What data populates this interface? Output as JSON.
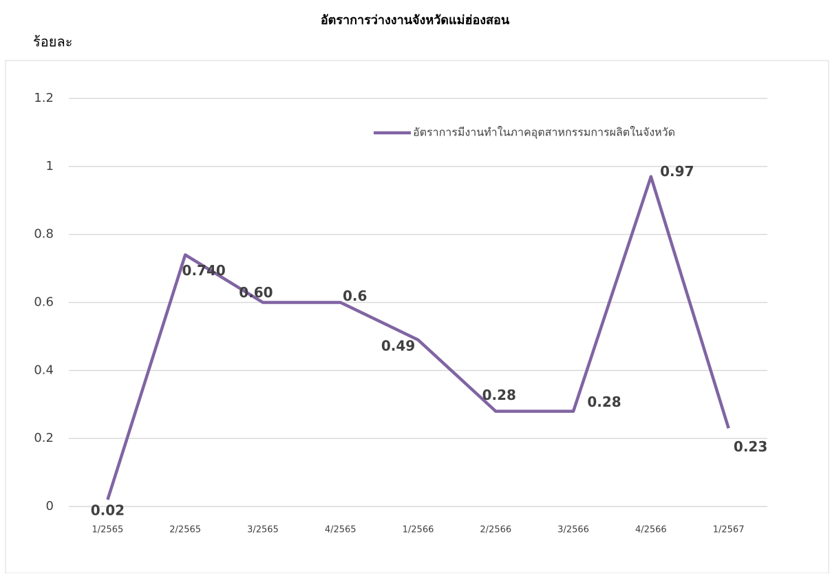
{
  "chart_data": {
    "type": "line",
    "title": "อัตราการว่างงานจังหวัดแม่ฮ่องสอน",
    "y_axis_label": "ร้อยละ",
    "categories": [
      "1/2565",
      "2/2565",
      "3/2565",
      "4/2565",
      "1/2566",
      "2/2566",
      "3/2566",
      "4/2566",
      "1/2567"
    ],
    "series": [
      {
        "name": "อัตราการมีงานทำในภาคอุตสาหกรรมการผลิตในจังหวัด",
        "color": "#8064a2",
        "values": [
          0.02,
          0.74,
          0.6,
          0.6,
          0.49,
          0.28,
          0.28,
          0.97,
          0.23
        ],
        "value_labels": [
          "0.02",
          "0.740",
          "0.60",
          "0.6",
          "0.49",
          "0.28",
          "0.28",
          "0.97",
          "0.23"
        ]
      }
    ],
    "ylim": [
      0,
      1.2
    ],
    "yticks": [
      0,
      0.2,
      0.4,
      0.6,
      0.8,
      1,
      1.2
    ],
    "grid": true
  }
}
